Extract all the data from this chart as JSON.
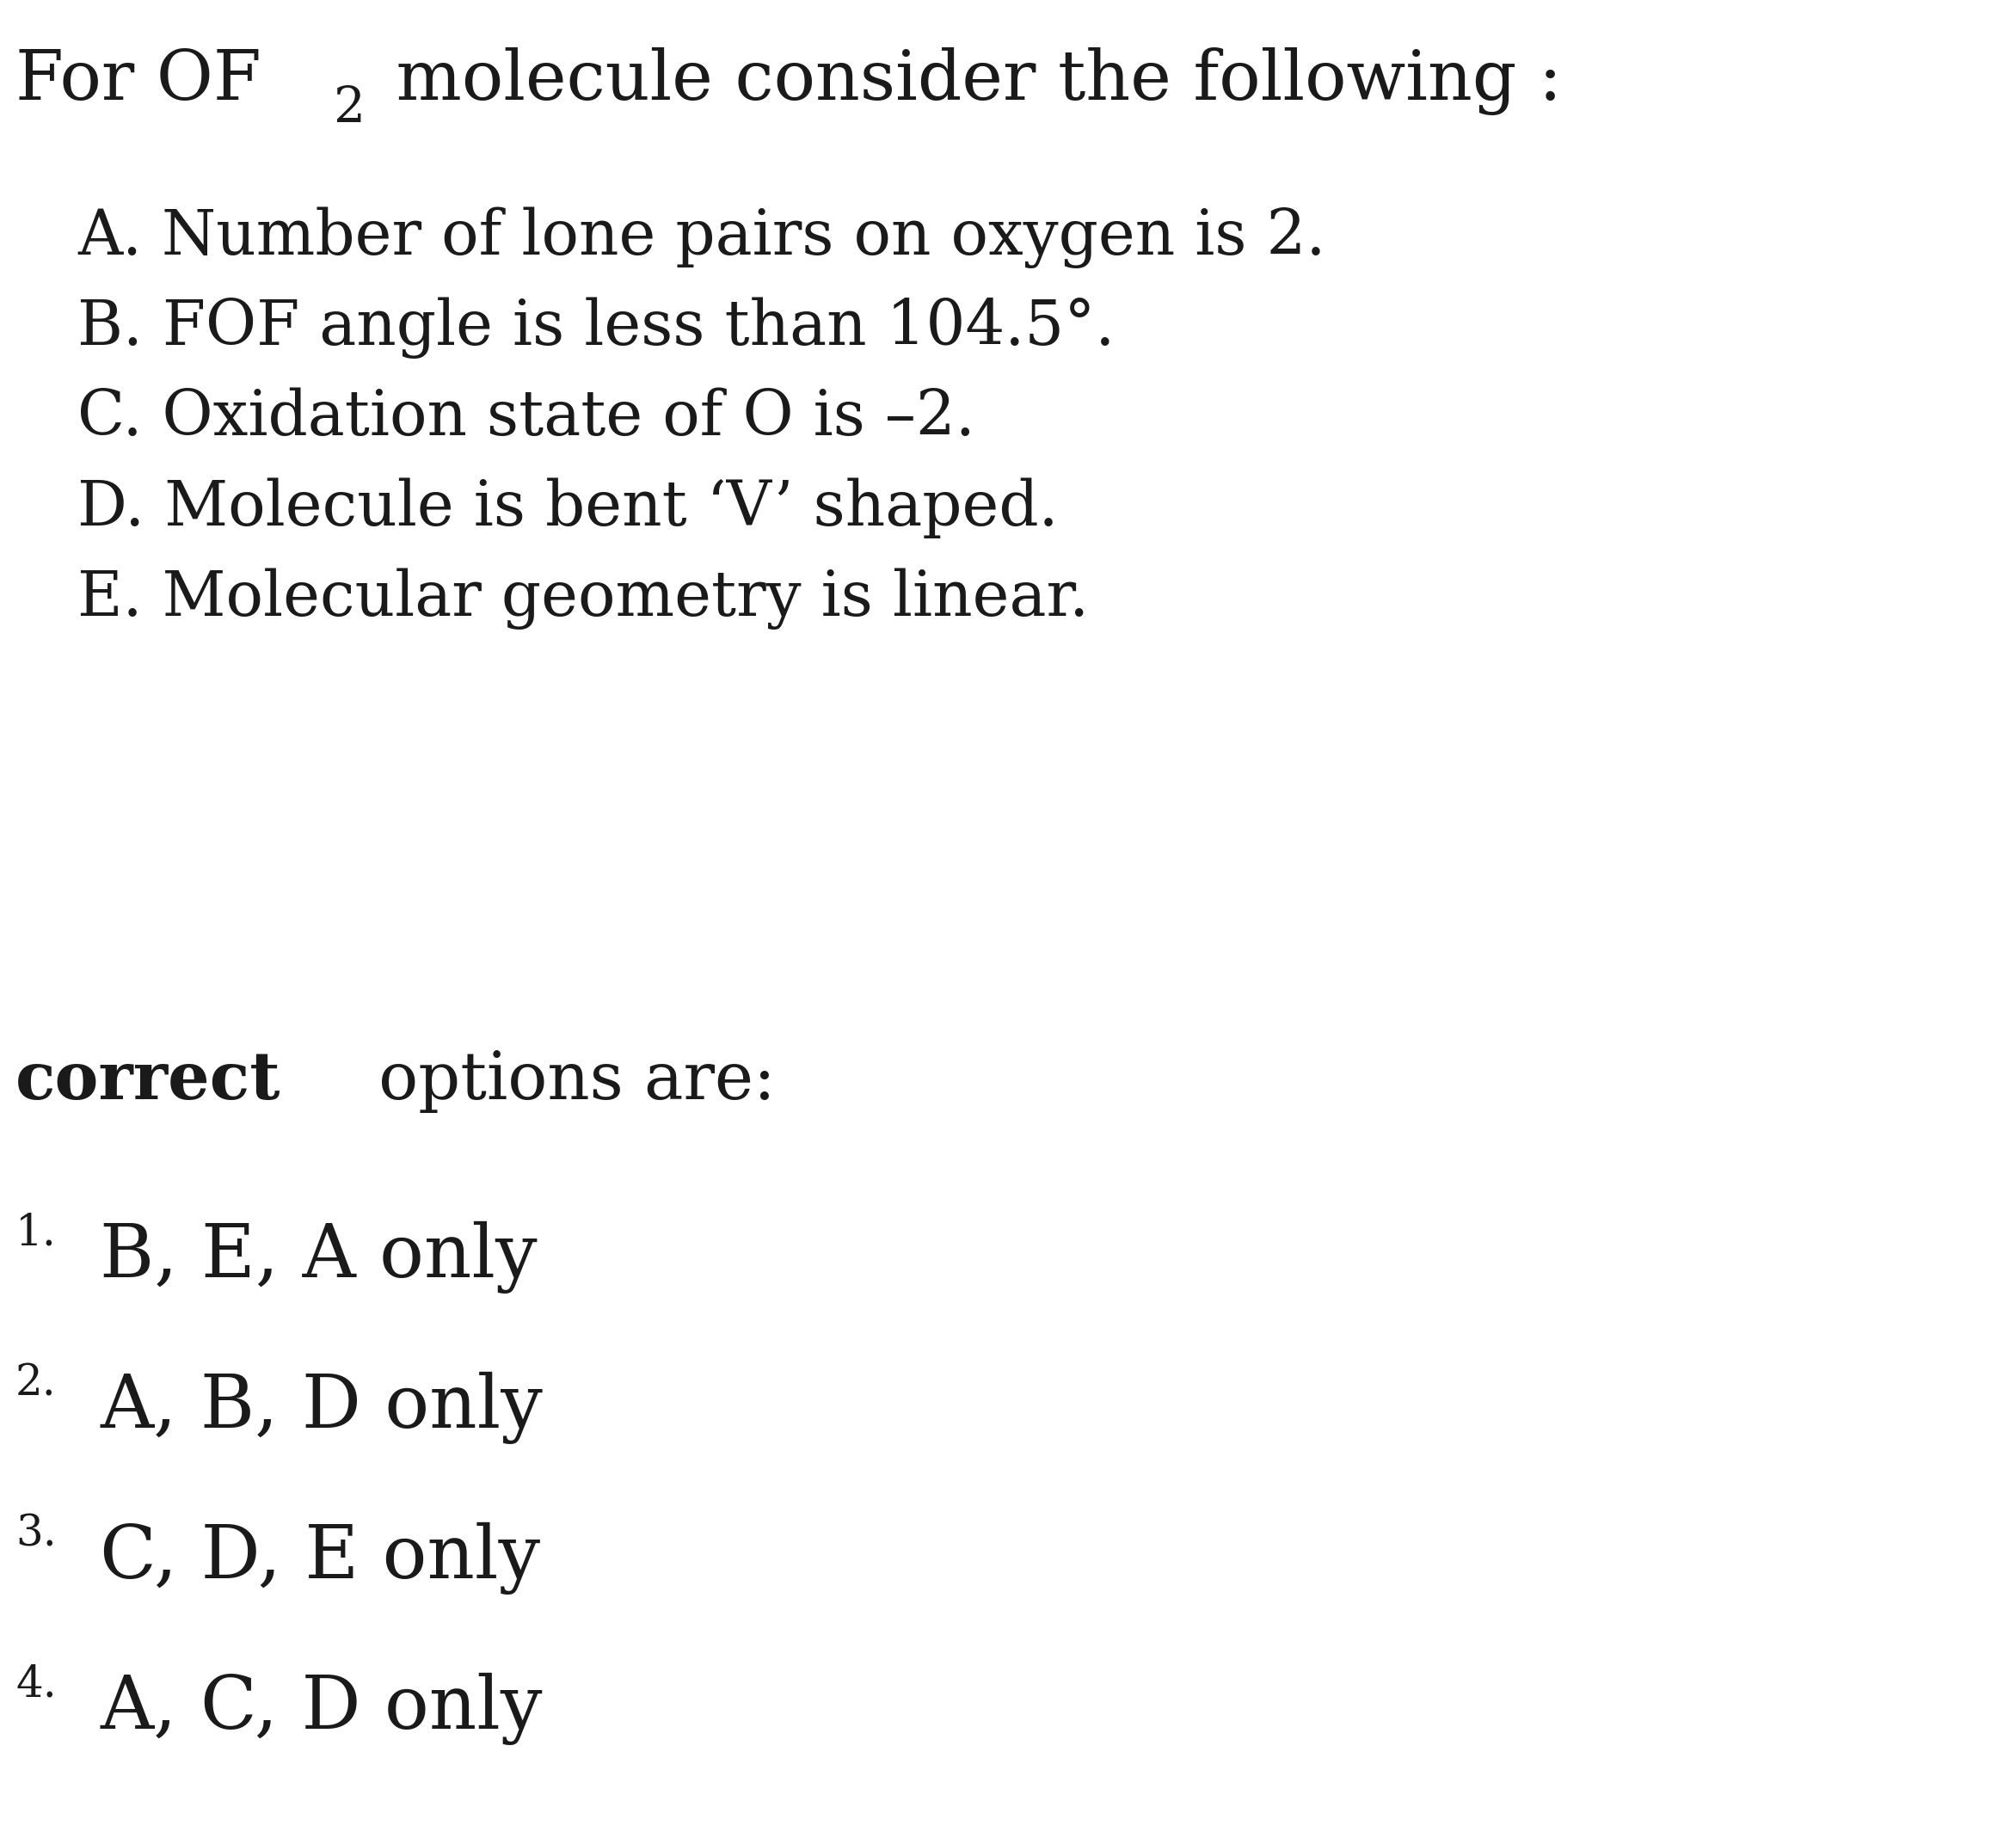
{
  "background_color": "#ffffff",
  "text_color": "#1a1a1a",
  "font_family": "DejaVu Serif",
  "title_fontsize": 58,
  "subscript_fontsize": 42,
  "options_fontsize": 52,
  "correct_fontsize": 55,
  "answer_fontsize": 62,
  "number_fontsize": 36,
  "options": [
    "A. Number of lone pairs on oxygen is 2.",
    "B. FOF angle is less than 104.5°.",
    "C. Oxidation state of O is –2.",
    "D. Molecule is bent ‘V’ shaped.",
    "E. Molecular geometry is linear."
  ],
  "answers": [
    {
      "number": "1.",
      "text": "B, E, A only"
    },
    {
      "number": "2.",
      "text": "A, B, D only"
    },
    {
      "number": "3.",
      "text": "C, D, E only"
    },
    {
      "number": "4.",
      "text": "A, C, D only"
    }
  ]
}
